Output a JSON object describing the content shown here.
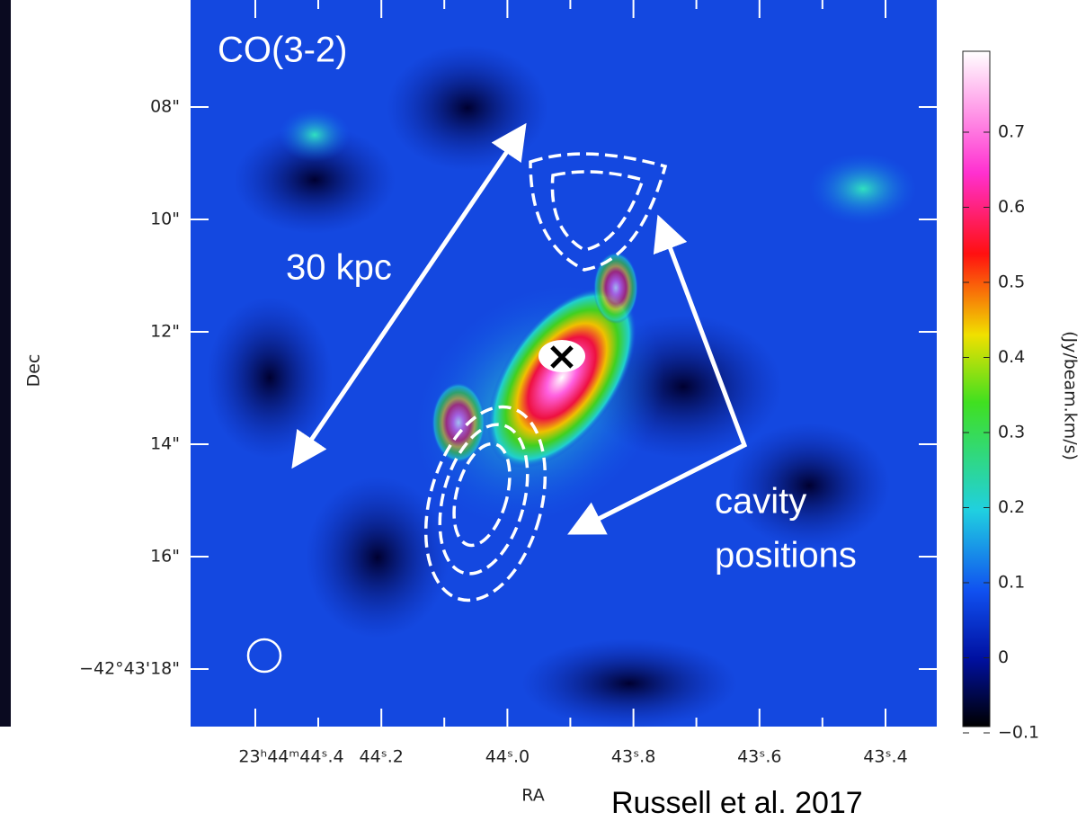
{
  "figure": {
    "panel_label": "CO(3-2)",
    "annotations": {
      "distance": "30 kpc",
      "cavity": [
        "cavity",
        "positions"
      ]
    },
    "y_axis": {
      "label": "Dec",
      "ticks": [
        "08\"",
        "10\"",
        "12\"",
        "14\"",
        "16\"",
        "−42°43'18\""
      ]
    },
    "x_axis": {
      "label": "RA",
      "ticks": [
        "23ʰ44ᵐ44ˢ.4",
        "44ˢ.2",
        "44ˢ.0",
        "43ˢ.8",
        "43ˢ.6",
        "43ˢ.4"
      ]
    },
    "colorbar": {
      "label": "(Jy/beam.km/s)",
      "ticks": [
        "0.7",
        "0.6",
        "0.5",
        "0.4",
        "0.3",
        "0.2",
        "0.1",
        "0",
        "−0.1"
      ]
    },
    "credit": "Russell et al. 2017"
  }
}
